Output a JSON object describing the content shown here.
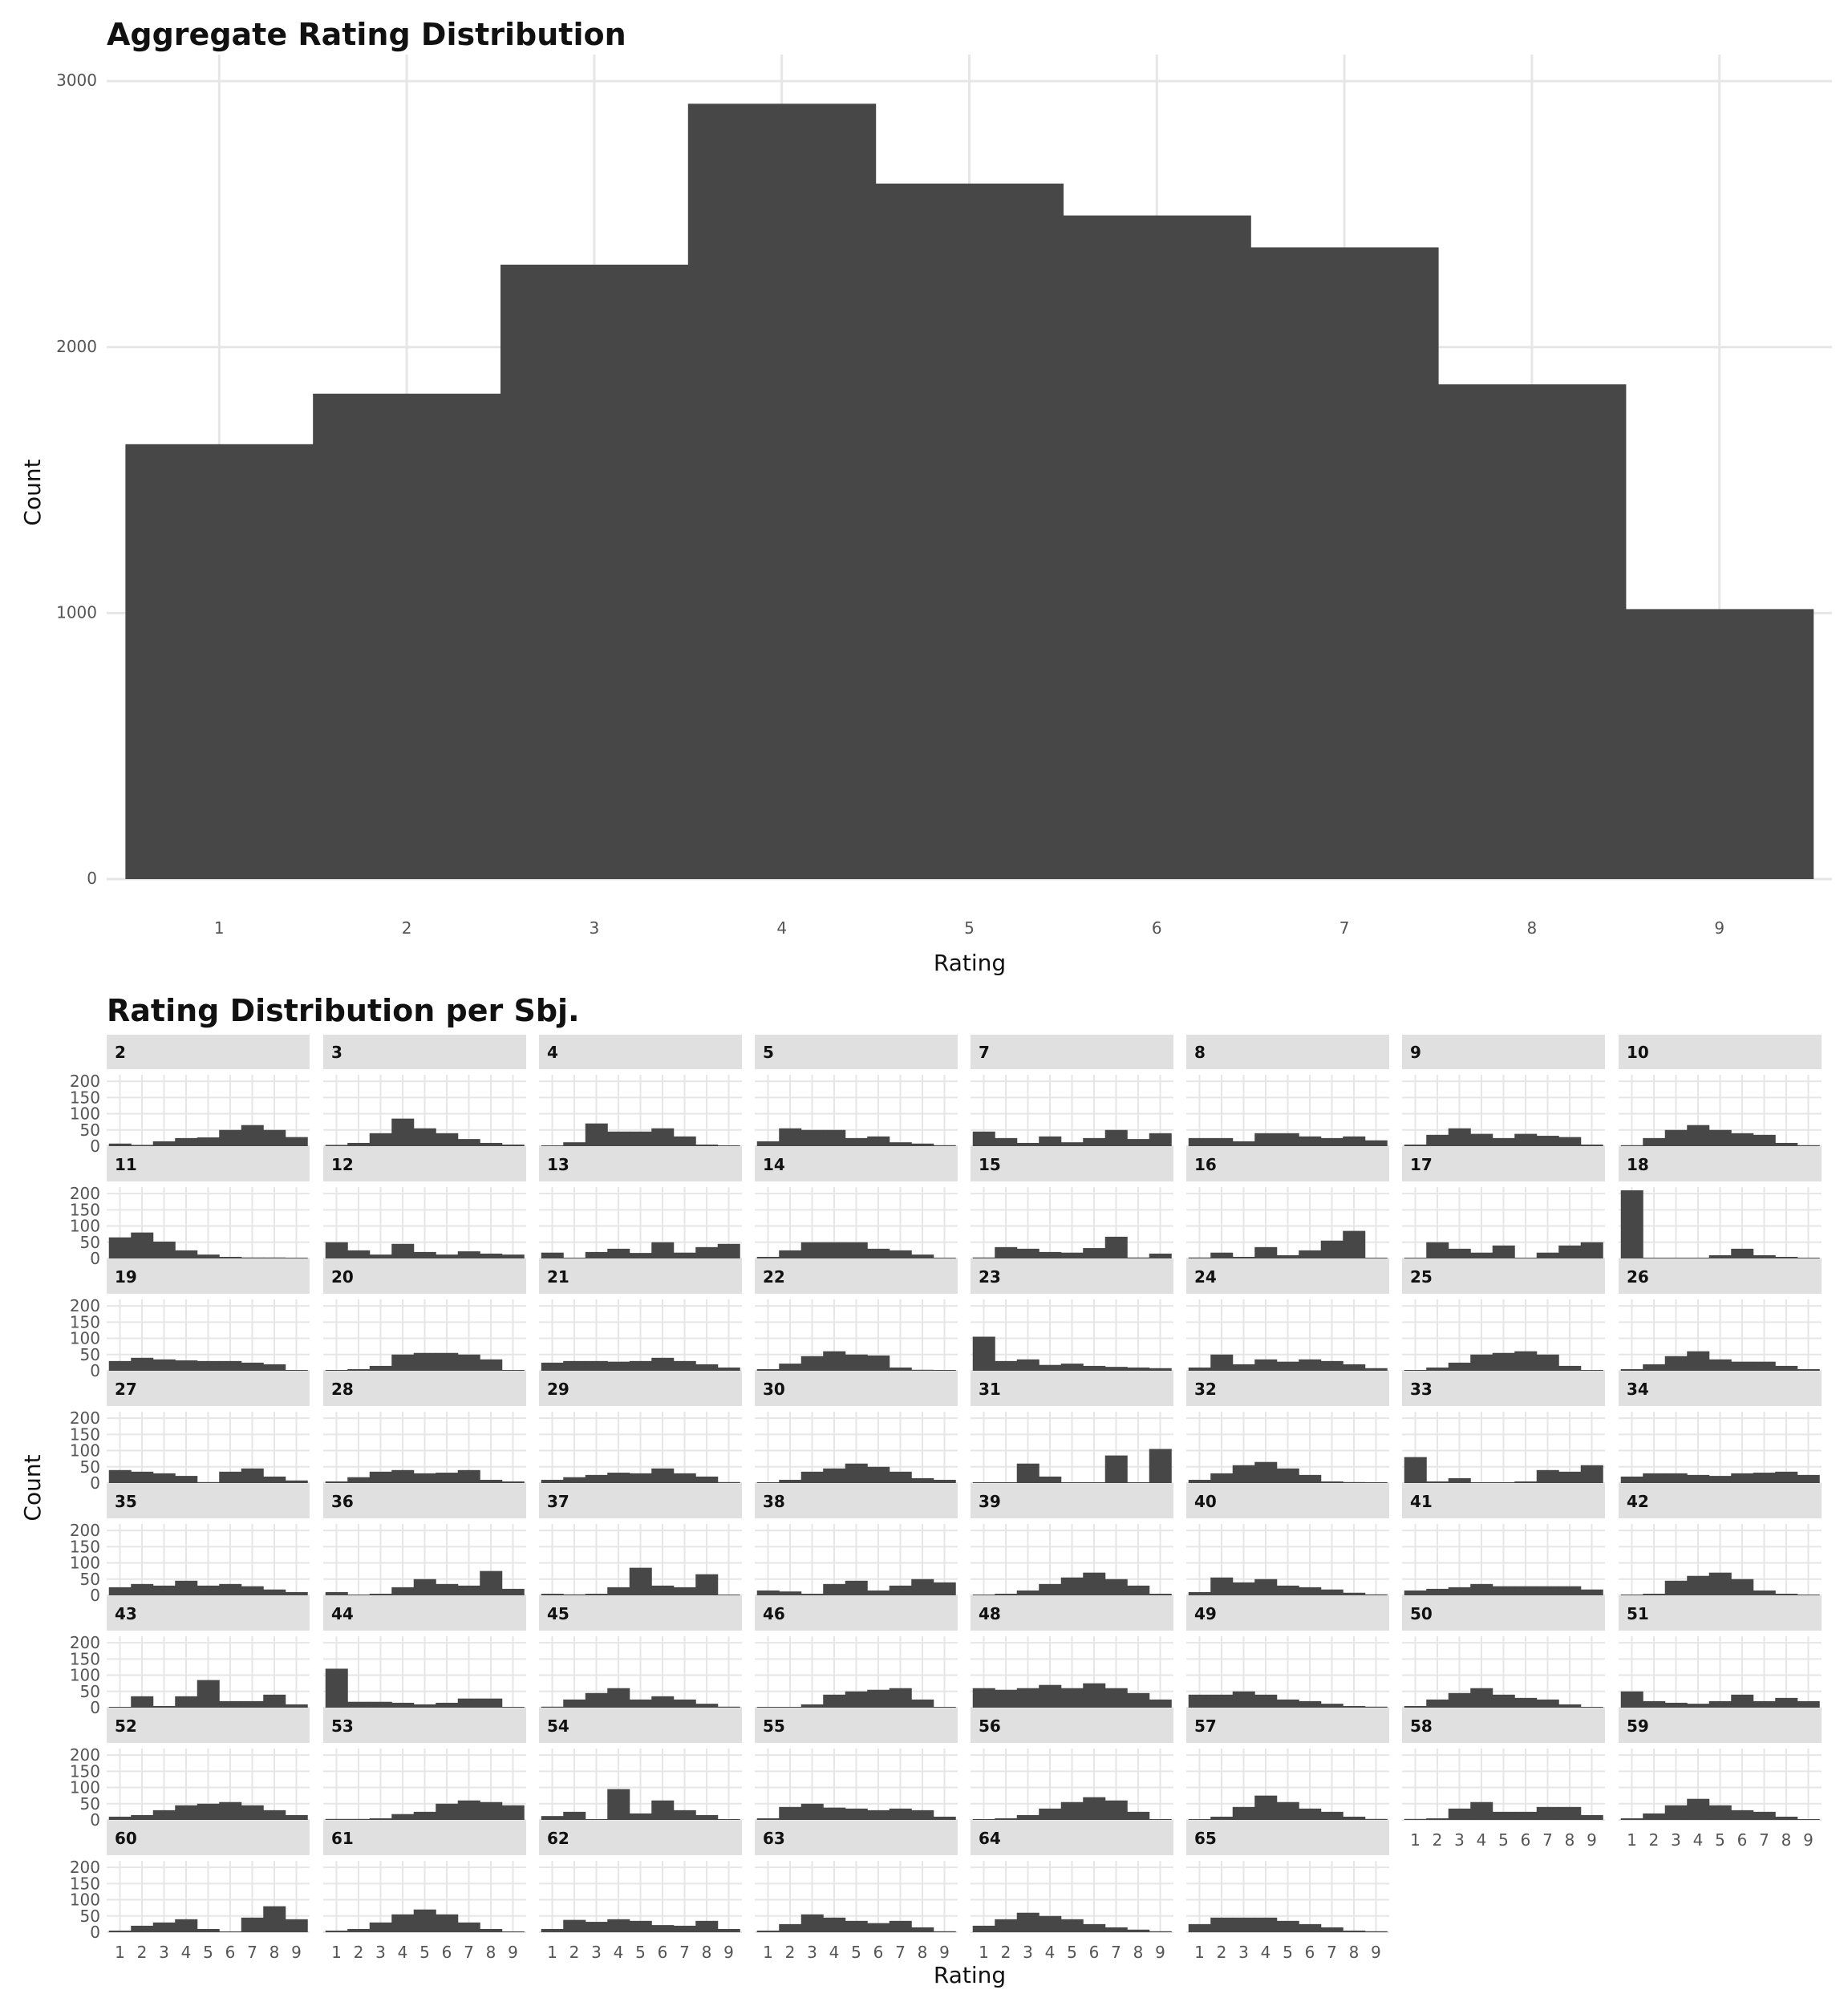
{
  "colors": {
    "bar": "#474747",
    "grid": "#e6e6e6",
    "strip": "#e0e0e0",
    "text": "#111111",
    "tick": "#555555"
  },
  "aggregate": {
    "title": "Aggregate Rating Distribution",
    "xlabel": "Rating",
    "ylabel": "Count"
  },
  "facets": {
    "title": "Rating Distribution per Sbj.",
    "xlabel": "Rating",
    "ylabel": "Count"
  },
  "chart_data": [
    {
      "type": "bar",
      "title": "Aggregate Rating Distribution",
      "xlabel": "Rating",
      "ylabel": "Count",
      "categories": [
        "1",
        "2",
        "3",
        "4",
        "5",
        "6",
        "7",
        "8",
        "9"
      ],
      "values": [
        1635,
        1825,
        2310,
        2915,
        2615,
        2495,
        2375,
        1860,
        1015
      ],
      "ylim": [
        0,
        3100
      ],
      "yticks": [
        0,
        1000,
        2000,
        3000
      ],
      "grid": true,
      "legend": "none"
    },
    {
      "type": "bar",
      "title": "Rating Distribution per Sbj.",
      "xlabel": "Rating",
      "ylabel": "Count",
      "categories": [
        "1",
        "2",
        "3",
        "4",
        "5",
        "6",
        "7",
        "8",
        "9"
      ],
      "ylim": [
        0,
        220
      ],
      "yticks": [
        0,
        50,
        100,
        150,
        200
      ],
      "grid": true,
      "legend": "none",
      "panels": [
        {
          "name": "2",
          "values": [
            8,
            4,
            15,
            25,
            27,
            50,
            65,
            50,
            28
          ]
        },
        {
          "name": "3",
          "values": [
            4,
            10,
            40,
            85,
            55,
            40,
            22,
            10,
            5
          ]
        },
        {
          "name": "4",
          "values": [
            0,
            12,
            70,
            45,
            45,
            55,
            30,
            5,
            0
          ]
        },
        {
          "name": "5",
          "values": [
            15,
            55,
            50,
            50,
            25,
            30,
            12,
            8,
            3
          ]
        },
        {
          "name": "7",
          "values": [
            45,
            25,
            10,
            30,
            12,
            25,
            50,
            22,
            40
          ]
        },
        {
          "name": "8",
          "values": [
            25,
            25,
            15,
            40,
            40,
            30,
            25,
            30,
            18
          ]
        },
        {
          "name": "9",
          "values": [
            5,
            35,
            55,
            38,
            25,
            38,
            32,
            28,
            5
          ]
        },
        {
          "name": "10",
          "values": [
            3,
            25,
            50,
            65,
            50,
            40,
            35,
            10,
            3
          ]
        },
        {
          "name": "11",
          "values": [
            65,
            80,
            52,
            25,
            12,
            5,
            3,
            3,
            1
          ]
        },
        {
          "name": "12",
          "values": [
            50,
            25,
            12,
            45,
            20,
            12,
            22,
            15,
            12
          ]
        },
        {
          "name": "13",
          "values": [
            18,
            2,
            20,
            30,
            17,
            50,
            18,
            35,
            45
          ]
        },
        {
          "name": "14",
          "values": [
            5,
            25,
            50,
            50,
            50,
            30,
            25,
            12,
            0
          ]
        },
        {
          "name": "15",
          "values": [
            3,
            35,
            30,
            20,
            18,
            32,
            67,
            3,
            15
          ]
        },
        {
          "name": "16",
          "values": [
            3,
            18,
            5,
            35,
            10,
            25,
            55,
            85,
            0
          ]
        },
        {
          "name": "17",
          "values": [
            0,
            50,
            30,
            18,
            40,
            0,
            18,
            40,
            50
          ]
        },
        {
          "name": "18",
          "values": [
            210,
            0,
            0,
            0,
            10,
            30,
            10,
            5,
            0
          ]
        },
        {
          "name": "19",
          "values": [
            30,
            40,
            35,
            32,
            30,
            30,
            25,
            20,
            0
          ]
        },
        {
          "name": "20",
          "values": [
            0,
            5,
            15,
            50,
            55,
            55,
            50,
            35,
            0
          ]
        },
        {
          "name": "21",
          "values": [
            25,
            30,
            30,
            28,
            30,
            40,
            30,
            20,
            10
          ]
        },
        {
          "name": "22",
          "values": [
            5,
            22,
            45,
            60,
            50,
            47,
            10,
            3,
            0
          ]
        },
        {
          "name": "23",
          "values": [
            105,
            30,
            35,
            18,
            22,
            15,
            12,
            10,
            8
          ]
        },
        {
          "name": "24",
          "values": [
            10,
            50,
            20,
            35,
            28,
            35,
            30,
            20,
            8
          ]
        },
        {
          "name": "25",
          "values": [
            0,
            10,
            25,
            50,
            55,
            60,
            50,
            15,
            0
          ]
        },
        {
          "name": "26",
          "values": [
            5,
            20,
            45,
            60,
            35,
            28,
            28,
            15,
            5
          ]
        },
        {
          "name": "27",
          "values": [
            40,
            35,
            30,
            22,
            3,
            35,
            45,
            20,
            8
          ]
        },
        {
          "name": "28",
          "values": [
            5,
            18,
            35,
            40,
            30,
            32,
            40,
            10,
            5
          ]
        },
        {
          "name": "29",
          "values": [
            10,
            18,
            25,
            32,
            30,
            45,
            30,
            20,
            3
          ]
        },
        {
          "name": "30",
          "values": [
            0,
            10,
            35,
            45,
            60,
            50,
            35,
            15,
            10
          ]
        },
        {
          "name": "31",
          "values": [
            0,
            0,
            60,
            20,
            0,
            0,
            85,
            0,
            105
          ]
        },
        {
          "name": "32",
          "values": [
            10,
            30,
            55,
            65,
            45,
            25,
            5,
            3,
            0
          ]
        },
        {
          "name": "33",
          "values": [
            80,
            5,
            15,
            0,
            0,
            5,
            40,
            35,
            55
          ]
        },
        {
          "name": "34",
          "values": [
            20,
            30,
            30,
            25,
            22,
            30,
            32,
            35,
            25
          ]
        },
        {
          "name": "35",
          "values": [
            25,
            35,
            30,
            45,
            30,
            35,
            28,
            18,
            10
          ]
        },
        {
          "name": "36",
          "values": [
            10,
            0,
            5,
            25,
            50,
            35,
            30,
            75,
            20
          ]
        },
        {
          "name": "37",
          "values": [
            5,
            3,
            5,
            25,
            85,
            30,
            25,
            65,
            0
          ]
        },
        {
          "name": "38",
          "values": [
            15,
            12,
            5,
            35,
            45,
            15,
            30,
            50,
            40
          ]
        },
        {
          "name": "39",
          "values": [
            0,
            5,
            15,
            35,
            55,
            70,
            50,
            30,
            5
          ]
        },
        {
          "name": "40",
          "values": [
            10,
            55,
            40,
            50,
            30,
            25,
            18,
            8,
            3
          ]
        },
        {
          "name": "41",
          "values": [
            15,
            20,
            25,
            35,
            28,
            28,
            28,
            28,
            18
          ]
        },
        {
          "name": "42",
          "values": [
            0,
            5,
            45,
            60,
            70,
            50,
            15,
            5,
            0
          ]
        },
        {
          "name": "43",
          "values": [
            0,
            35,
            5,
            35,
            85,
            20,
            20,
            40,
            10
          ]
        },
        {
          "name": "44",
          "values": [
            120,
            18,
            18,
            15,
            10,
            15,
            28,
            28,
            0
          ]
        },
        {
          "name": "45",
          "values": [
            3,
            25,
            45,
            60,
            25,
            35,
            25,
            12,
            3
          ]
        },
        {
          "name": "46",
          "values": [
            0,
            0,
            10,
            40,
            50,
            55,
            60,
            25,
            0
          ]
        },
        {
          "name": "48",
          "values": [
            60,
            55,
            60,
            70,
            60,
            75,
            60,
            45,
            25
          ]
        },
        {
          "name": "49",
          "values": [
            40,
            40,
            50,
            40,
            25,
            20,
            12,
            5,
            3
          ]
        },
        {
          "name": "50",
          "values": [
            5,
            25,
            45,
            60,
            40,
            30,
            25,
            10,
            0
          ]
        },
        {
          "name": "51",
          "values": [
            50,
            20,
            15,
            12,
            20,
            40,
            20,
            30,
            20
          ]
        },
        {
          "name": "52",
          "values": [
            10,
            15,
            30,
            45,
            50,
            55,
            45,
            30,
            15
          ]
        },
        {
          "name": "53",
          "values": [
            3,
            3,
            5,
            18,
            25,
            50,
            60,
            55,
            45
          ]
        },
        {
          "name": "54",
          "values": [
            12,
            25,
            0,
            95,
            20,
            60,
            30,
            15,
            0
          ]
        },
        {
          "name": "55",
          "values": [
            5,
            40,
            50,
            38,
            35,
            30,
            35,
            30,
            10
          ]
        },
        {
          "name": "56",
          "values": [
            0,
            5,
            15,
            35,
            55,
            70,
            60,
            25,
            0
          ]
        },
        {
          "name": "57",
          "values": [
            0,
            10,
            40,
            75,
            55,
            35,
            25,
            10,
            3
          ]
        },
        {
          "name": "58",
          "values": [
            3,
            5,
            35,
            55,
            25,
            25,
            40,
            40,
            15
          ]
        },
        {
          "name": "59",
          "values": [
            5,
            20,
            45,
            65,
            45,
            30,
            25,
            10,
            0
          ]
        },
        {
          "name": "60",
          "values": [
            5,
            20,
            30,
            40,
            10,
            0,
            45,
            80,
            40
          ]
        },
        {
          "name": "61",
          "values": [
            5,
            10,
            30,
            55,
            70,
            55,
            30,
            10,
            0
          ]
        },
        {
          "name": "62",
          "values": [
            10,
            38,
            32,
            40,
            35,
            22,
            20,
            35,
            10
          ]
        },
        {
          "name": "63",
          "values": [
            5,
            25,
            55,
            45,
            35,
            28,
            35,
            15,
            3
          ]
        },
        {
          "name": "64",
          "values": [
            20,
            40,
            60,
            50,
            40,
            25,
            15,
            8,
            3
          ]
        },
        {
          "name": "65",
          "values": [
            25,
            45,
            45,
            45,
            35,
            25,
            15,
            5,
            3
          ]
        }
      ]
    }
  ]
}
